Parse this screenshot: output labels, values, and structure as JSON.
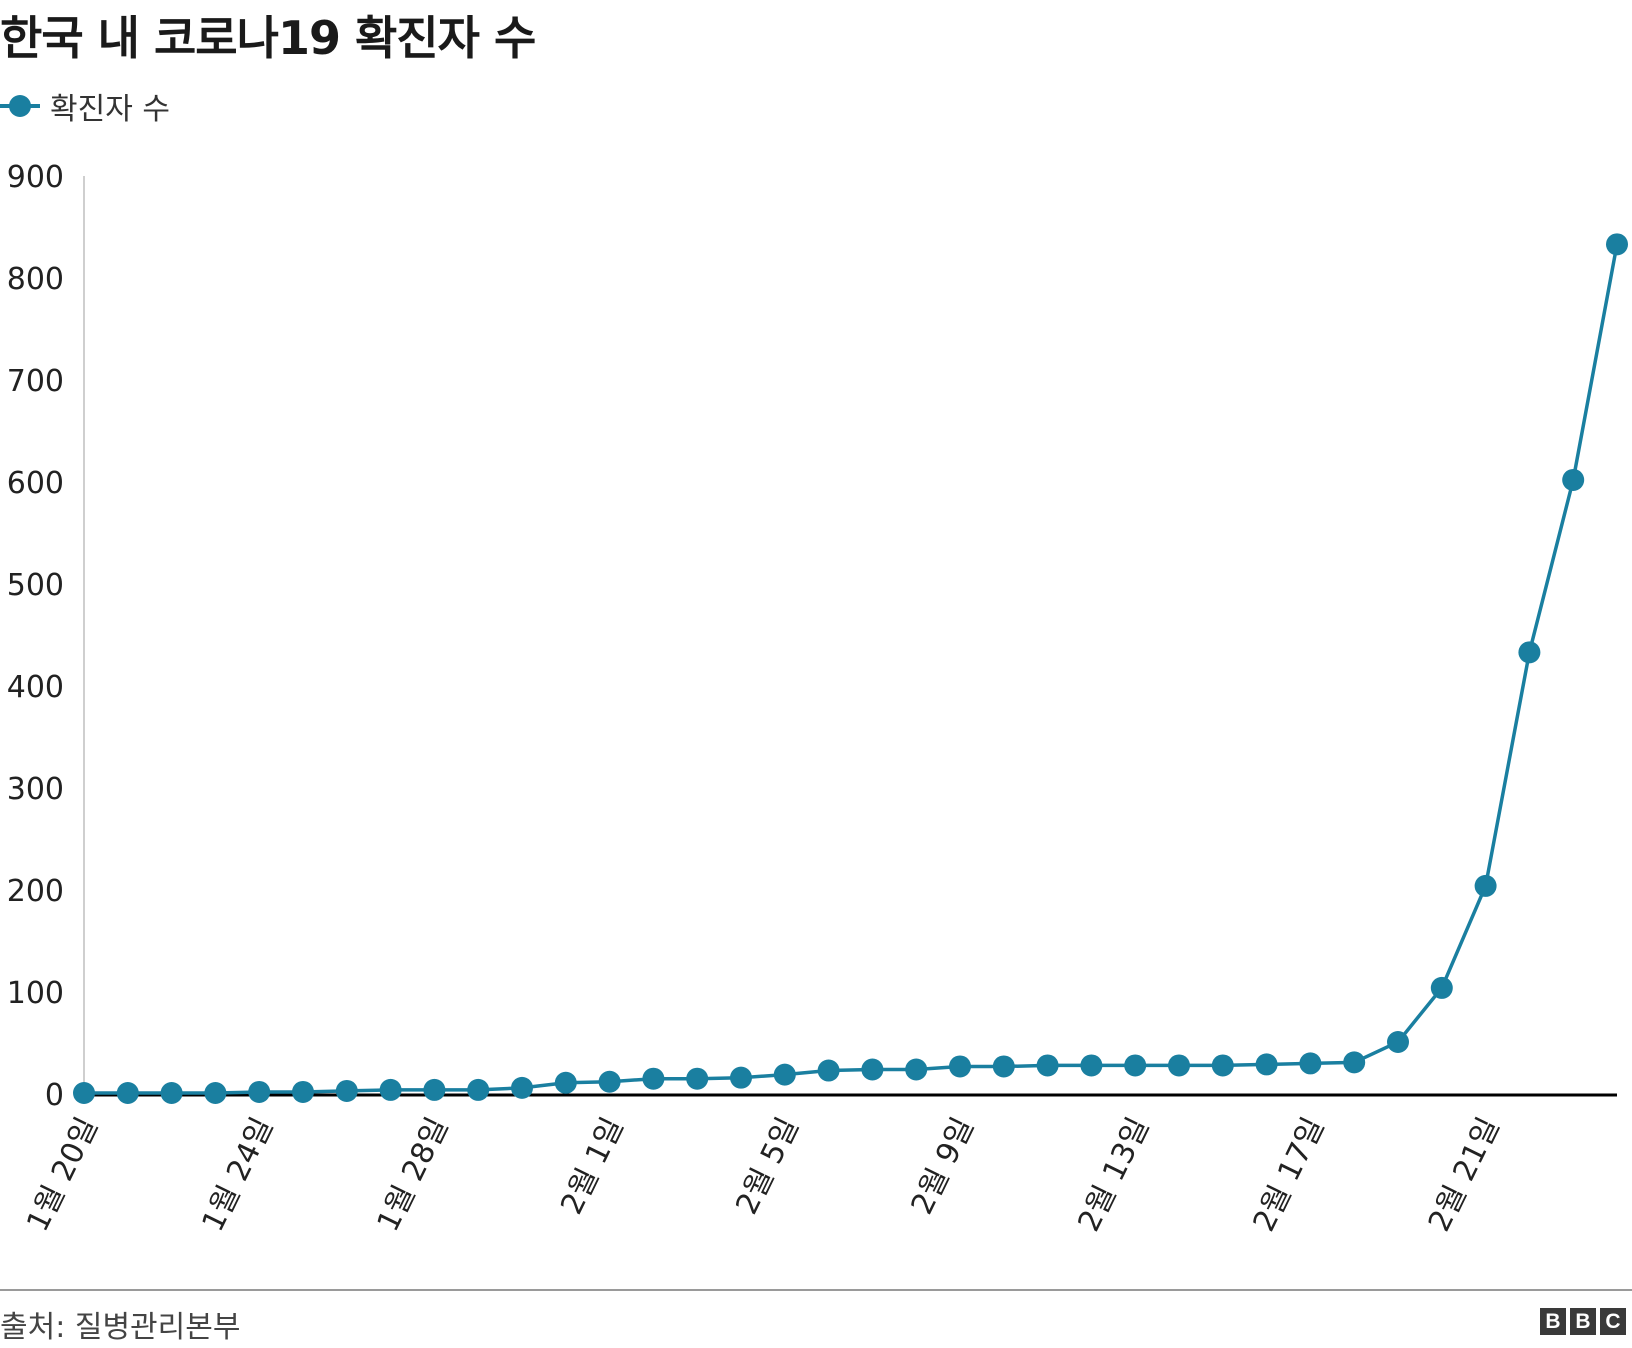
{
  "title": "한국 내 코로나19 확진자 수",
  "legend": {
    "label": "확진자 수"
  },
  "source": "출처: 질병관리본부",
  "logo": {
    "letters": [
      "B",
      "B",
      "C"
    ]
  },
  "colors": {
    "series": "#1a7fa0",
    "axis": "#000000",
    "text": "#222222",
    "rule": "#9a9a9a"
  },
  "chart_data": {
    "type": "line",
    "title": "한국 내 코로나19 확진자 수",
    "xlabel": "",
    "ylabel": "",
    "ylim": [
      0,
      900
    ],
    "yticks": [
      0,
      100,
      200,
      300,
      400,
      500,
      600,
      700,
      800,
      900
    ],
    "grid": false,
    "legend_position": "top-left",
    "x_tick_labels": [
      "1월 20일",
      "1월 24일",
      "1월 28일",
      "2월 1일",
      "2월 5일",
      "2월 9일",
      "2월 13일",
      "2월 17일",
      "2월 21일"
    ],
    "categories": [
      "1월 20일",
      "1월 21일",
      "1월 22일",
      "1월 23일",
      "1월 24일",
      "1월 25일",
      "1월 26일",
      "1월 27일",
      "1월 28일",
      "1월 29일",
      "1월 30일",
      "1월 31일",
      "2월 1일",
      "2월 2일",
      "2월 3일",
      "2월 4일",
      "2월 5일",
      "2월 6일",
      "2월 7일",
      "2월 8일",
      "2월 9일",
      "2월 10일",
      "2월 11일",
      "2월 12일",
      "2월 13일",
      "2월 14일",
      "2월 15일",
      "2월 16일",
      "2월 17일",
      "2월 18일",
      "2월 19일",
      "2월 20일",
      "2월 21일",
      "2월 22일",
      "2월 23일",
      "2월 24일"
    ],
    "series": [
      {
        "name": "확진자 수",
        "values": [
          1,
          1,
          1,
          1,
          2,
          2,
          3,
          4,
          4,
          4,
          6,
          11,
          12,
          15,
          15,
          16,
          19,
          23,
          24,
          24,
          27,
          27,
          28,
          28,
          28,
          28,
          28,
          29,
          30,
          31,
          51,
          104,
          204,
          433,
          602,
          833
        ]
      }
    ]
  }
}
